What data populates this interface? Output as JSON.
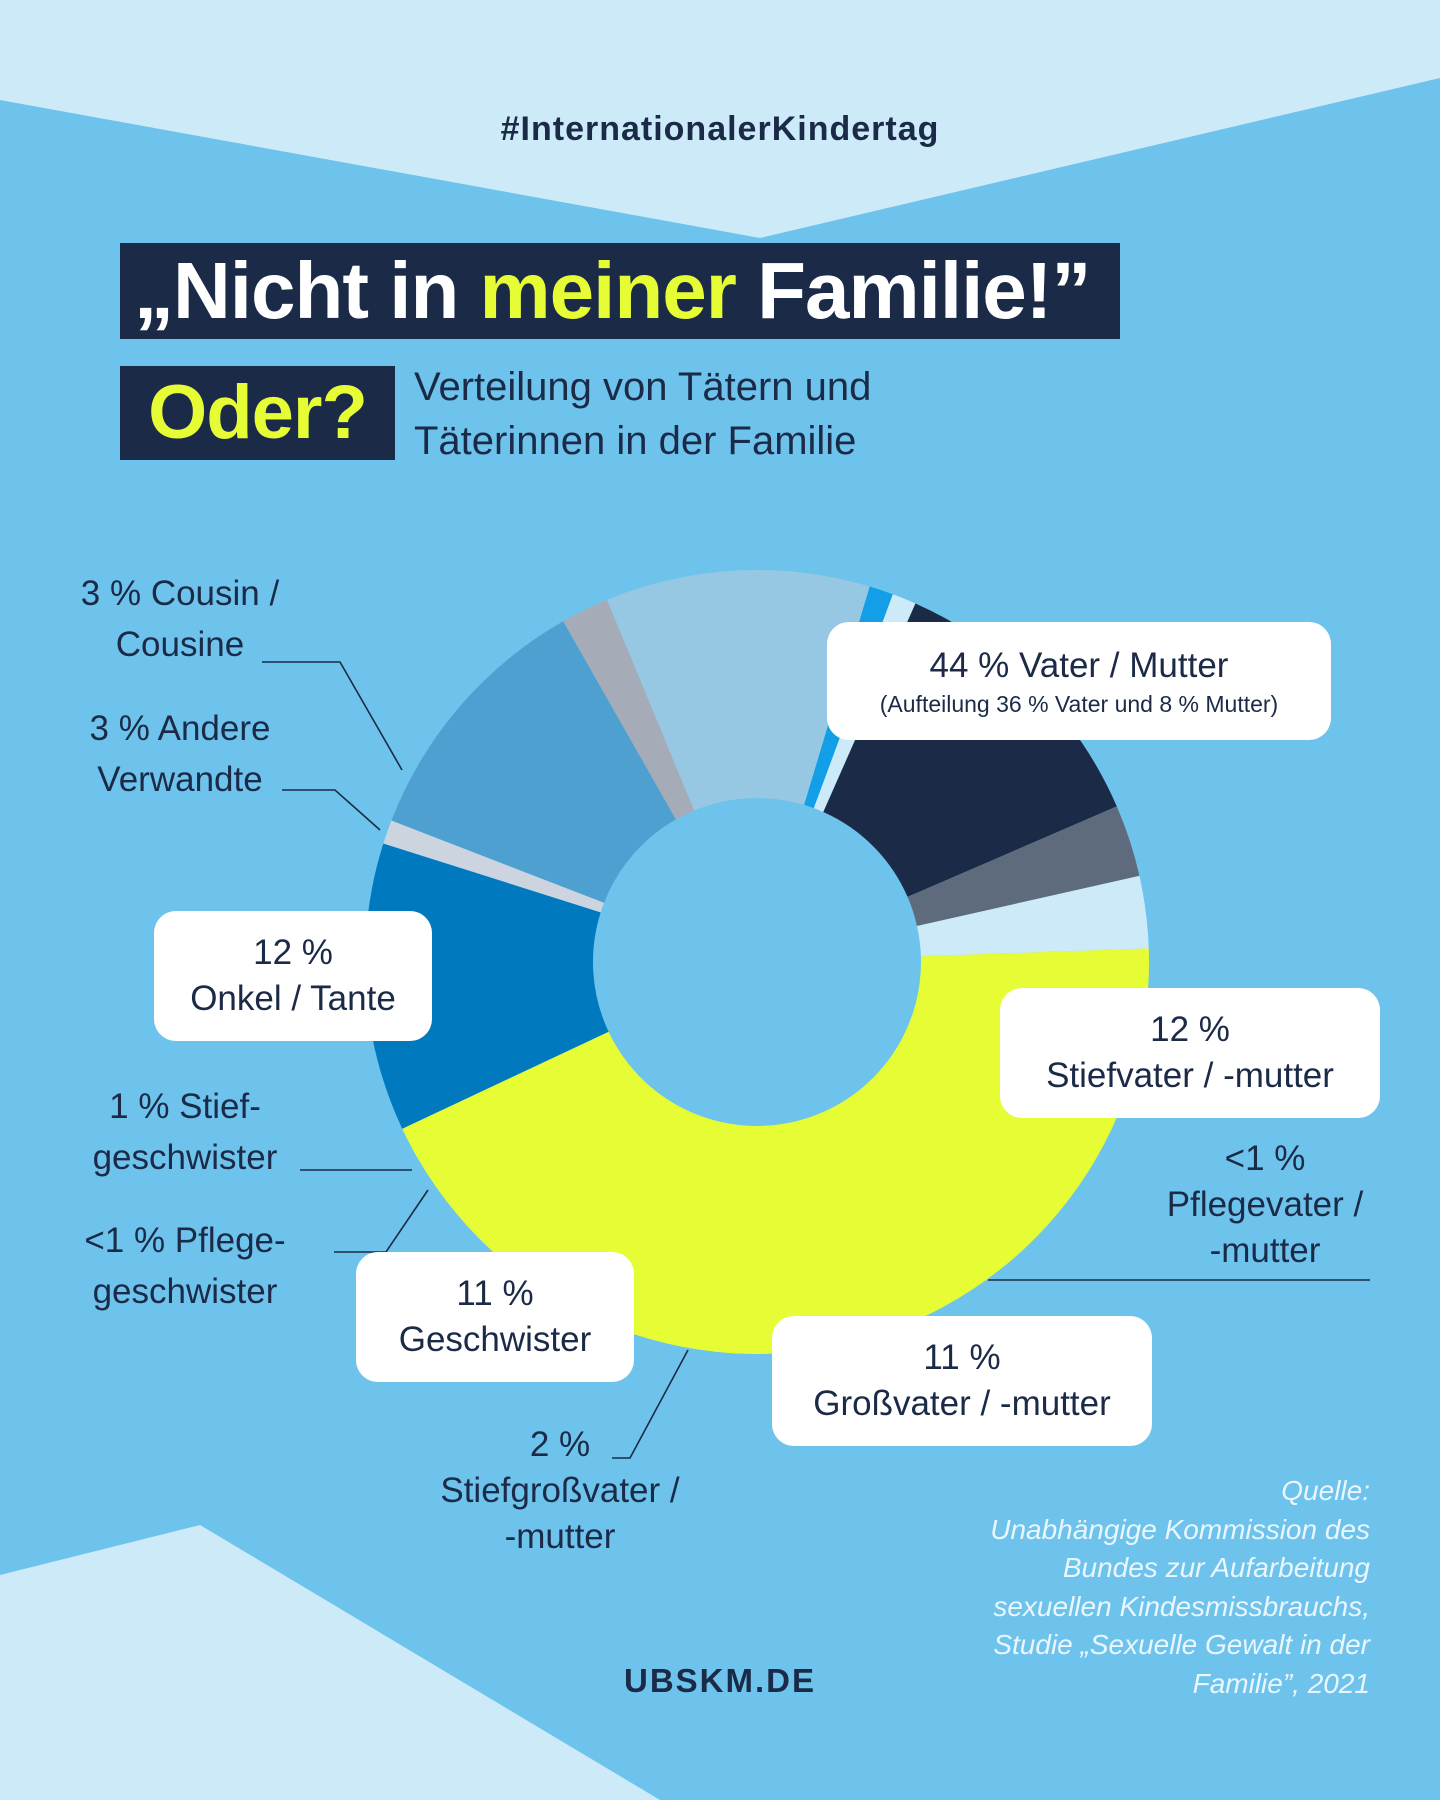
{
  "hashtag": "#InternationalerKindertag",
  "title": {
    "part1": "„Nicht in ",
    "highlight": "meiner",
    "part2": " Familie!”"
  },
  "oder": "Oder?",
  "subtitle": {
    "line1": "Verteilung von Tätern und",
    "line2": "Täterinnen in der Familie"
  },
  "colors": {
    "background": "#6ec3ec",
    "background_light": "#cdeaf8",
    "navy": "#1b2a47",
    "yellow": "#e6fd36"
  },
  "chart_data": {
    "type": "pie",
    "donut": true,
    "series": [
      {
        "value": 44,
        "color": "#e6fd36",
        "lines": [
          "44 % Vater / Mutter"
        ],
        "note": "(Aufteilung 36 % Vater und 8 % Mutter)"
      },
      {
        "value": 12,
        "color": "#0079bf",
        "lines": [
          "12 %",
          "Stiefvater / -mutter"
        ]
      },
      {
        "value": 1,
        "color": "#cbd4df",
        "lines": [
          "<1 %",
          "Pflegevater /",
          "-mutter"
        ]
      },
      {
        "value": 11,
        "color": "#4ea0d1",
        "lines": [
          "11 %",
          "Großvater / -mutter"
        ]
      },
      {
        "value": 2,
        "color": "#a6acb7",
        "lines": [
          "2 %",
          "Stiefgroßvater /",
          "-mutter"
        ]
      },
      {
        "value": 11,
        "color": "#97c8e3",
        "lines": [
          "11 %",
          "Geschwister"
        ]
      },
      {
        "value": 1,
        "color": "#139ee8",
        "lines": [
          "<1 % Pflege-",
          "geschwister"
        ]
      },
      {
        "value": 1,
        "color": "#cdeaf8",
        "lines": [
          "1 % Stief-",
          "geschwister"
        ]
      },
      {
        "value": 12,
        "color": "#1b2a47",
        "lines": [
          "12 %",
          "Onkel / Tante"
        ]
      },
      {
        "value": 3,
        "color": "#5e6b7d",
        "lines": [
          "3 % Andere",
          "Verwandte"
        ]
      },
      {
        "value": 3,
        "color": "#cdeaf8",
        "lines": [
          "3 % Cousin /",
          "Cousine"
        ]
      }
    ]
  },
  "source": {
    "lines": [
      "Quelle:",
      "Unabhängige Kommission des",
      "Bundes zur Aufarbeitung",
      "sexuellen Kindesmissbrauchs,",
      "Studie „Sexuelle Gewalt in der",
      "Familie”, 2021"
    ]
  },
  "footer": "UBSKM.DE"
}
